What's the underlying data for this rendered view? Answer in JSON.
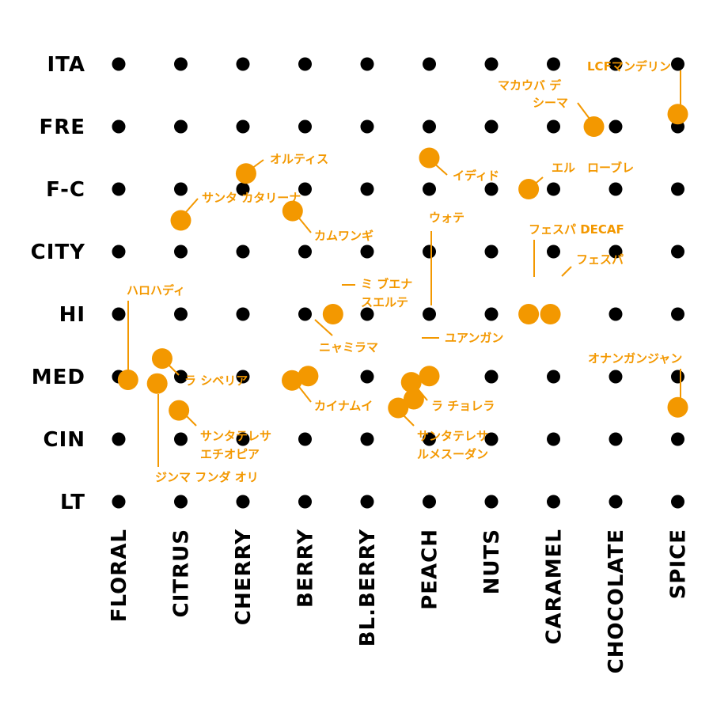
{
  "chart_data": {
    "type": "scatter",
    "rows": [
      "ITA",
      "FRE",
      "F-C",
      "CITY",
      "HI",
      "MED",
      "CIN",
      "LT"
    ],
    "columns": [
      "FLORAL",
      "CITRUS",
      "CHERRY",
      "BERRY",
      "BL.BERRY",
      "PEACH",
      "NUTS",
      "CARAMEL",
      "CHOCOLATE",
      "SPICE"
    ],
    "points": [
      {
        "name": "LCFマンデリン",
        "flavor": 9.0,
        "roast": 0.8
      },
      {
        "name": "マカウバ デ シーマ",
        "flavor": 7.65,
        "roast": 1.0
      },
      {
        "name": "イディド",
        "flavor": 5.0,
        "roast": 1.5
      },
      {
        "name": "エル　ローブレ",
        "flavor": 6.6,
        "roast": 2.0
      },
      {
        "name": "オルティス",
        "flavor": 2.05,
        "roast": 1.75
      },
      {
        "name": "サンタ カタリーナ",
        "flavor": 1.0,
        "roast": 2.5
      },
      {
        "name": "カムワンギ",
        "flavor": 2.8,
        "roast": 2.35
      },
      {
        "name": "フェスパ DECAF",
        "flavor": 6.6,
        "roast": 4.0
      },
      {
        "name": "フェスパ",
        "flavor": 6.95,
        "roast": 4.0
      },
      {
        "name": "ハロハディ",
        "flavor": 0.15,
        "roast": 5.05
      },
      {
        "name": "ミ ブエナ スエルテ",
        "flavor": 3.45,
        "roast": 4.0
      },
      {
        "name": "ウォテ",
        "flavor": 5.0,
        "roast": 4.99
      },
      {
        "name": "ニャミラマ",
        "flavor": 3.05,
        "roast": 4.99
      },
      {
        "name": "ユアンガン",
        "flavor": 4.75,
        "roast": 5.36
      },
      {
        "name": "オナンガンジャン",
        "flavor": 9.0,
        "roast": 5.49
      },
      {
        "name": "ラ シベリア",
        "flavor": 0.7,
        "roast": 4.71
      },
      {
        "name": "ジンマ フンダ オリ",
        "flavor": 0.62,
        "roast": 5.11
      },
      {
        "name": "サンタテレサ エチオピア",
        "flavor": 0.97,
        "roast": 5.54
      },
      {
        "name": "カイナムイ",
        "flavor": 2.79,
        "roast": 5.06
      },
      {
        "name": "ラ チョレラ",
        "flavor": 4.71,
        "roast": 5.09
      },
      {
        "name": "サンタテレサ ルメスーダン",
        "flavor": 4.5,
        "roast": 5.5
      }
    ],
    "grid": true,
    "colors": {
      "grid_dot": "#000000",
      "point": "#f39800"
    }
  }
}
